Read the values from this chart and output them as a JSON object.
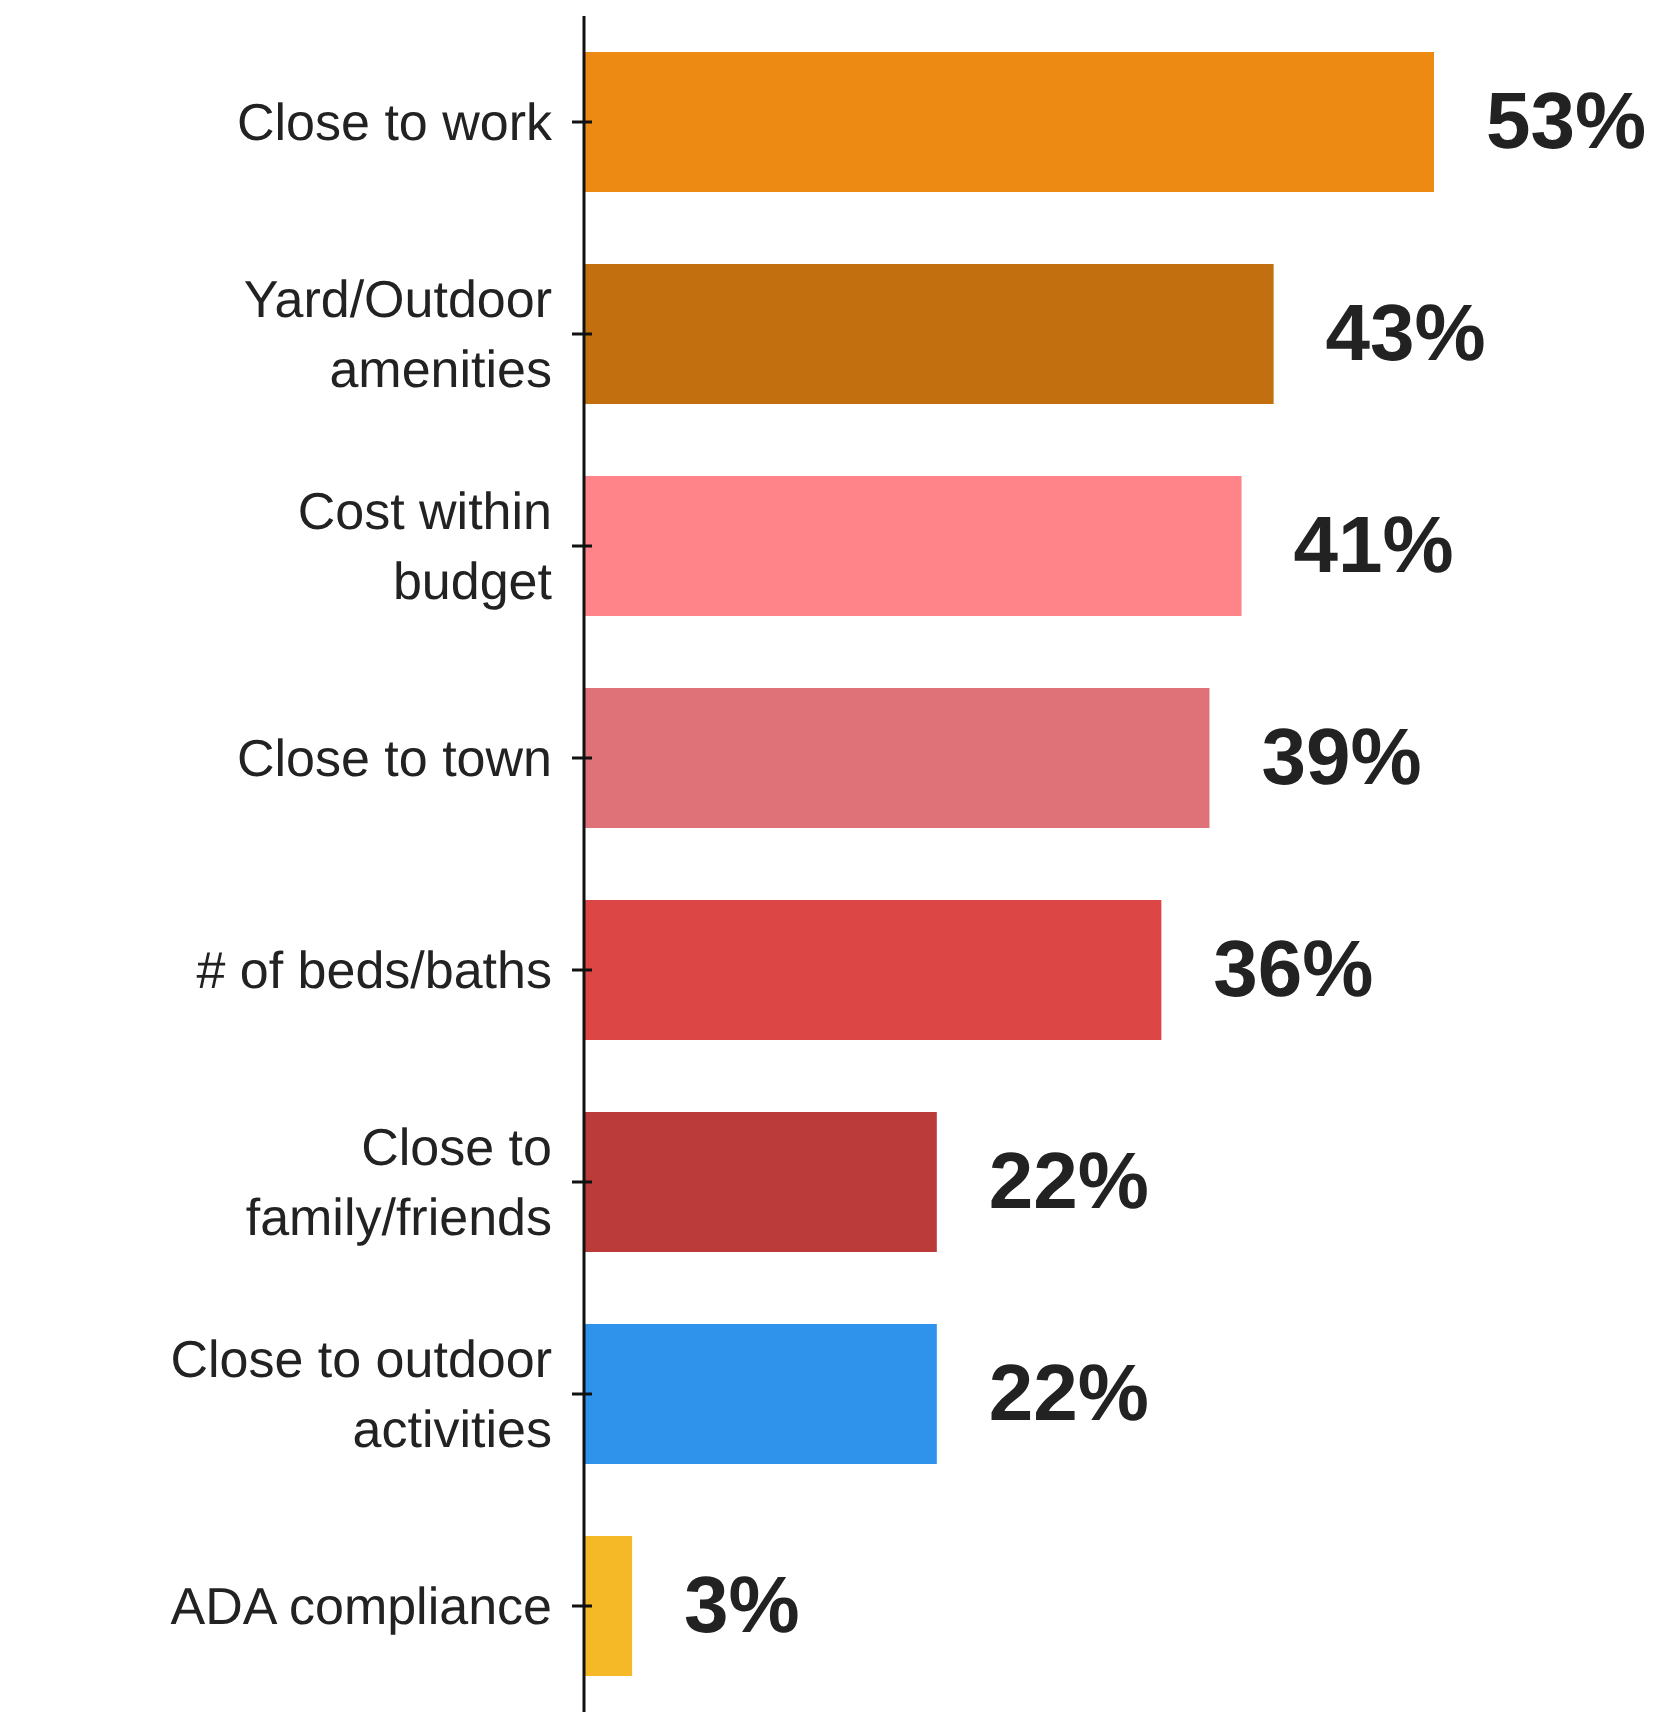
{
  "chart_data": {
    "type": "bar",
    "orientation": "horizontal",
    "categories": [
      "Close to work",
      "Yard/Outdoor amenities",
      "Cost within budget",
      "Close to town",
      "# of beds/baths",
      "Close to family/friends",
      "Close to outdoor activities",
      "ADA compliance"
    ],
    "values": [
      53,
      43,
      41,
      39,
      36,
      22,
      22,
      3
    ],
    "colors": [
      "#ec8a14",
      "#c2700f",
      "#ff848a",
      "#df7278",
      "#dc4745",
      "#bb3a3a",
      "#2f93eb",
      "#f5b827"
    ],
    "value_labels": [
      "53%",
      "43%",
      "41%",
      "39%",
      "36%",
      "22%",
      "22%",
      "3%"
    ]
  }
}
